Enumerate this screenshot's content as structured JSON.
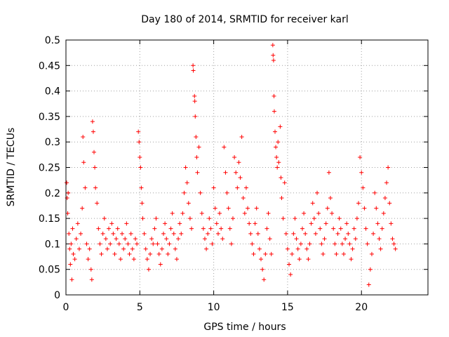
{
  "chart_data": {
    "type": "scatter",
    "title": "Day 180 of 2014, SRMTID for receiver karl",
    "xlabel": "GPS time / hours",
    "ylabel": "SRMTID / TECUs",
    "xlim": [
      0,
      24.5
    ],
    "ylim": [
      0,
      0.5
    ],
    "x_ticks": [
      0,
      5,
      10,
      15,
      20
    ],
    "x_tick_labels": [
      "0",
      "5",
      "10",
      "15",
      "20"
    ],
    "y_ticks": [
      0,
      0.05,
      0.1,
      0.15,
      0.2,
      0.25,
      0.3,
      0.35,
      0.4,
      0.45,
      0.5
    ],
    "y_tick_labels": [
      "0",
      "0.05",
      "0.1",
      "0.15",
      "0.2",
      "0.25",
      "0.3",
      "0.35",
      "0.4",
      "0.45",
      "0.5"
    ],
    "grid": true,
    "marker": "plus",
    "color": "#ff0000",
    "series": [
      {
        "name": "SRMTID",
        "points": [
          [
            0.05,
            0.22
          ],
          [
            0.08,
            0.19
          ],
          [
            0.12,
            0.16
          ],
          [
            0.15,
            0.2
          ],
          [
            0.2,
            0.12
          ],
          [
            0.25,
            0.09
          ],
          [
            0.3,
            0.06
          ],
          [
            0.35,
            0.1
          ],
          [
            0.4,
            0.03
          ],
          [
            0.45,
            0.13
          ],
          [
            0.5,
            0.08
          ],
          [
            0.6,
            0.07
          ],
          [
            0.7,
            0.11
          ],
          [
            0.8,
            0.14
          ],
          [
            0.9,
            0.09
          ],
          [
            1.0,
            0.12
          ],
          [
            1.1,
            0.17
          ],
          [
            1.15,
            0.31
          ],
          [
            1.2,
            0.26
          ],
          [
            1.3,
            0.21
          ],
          [
            1.4,
            0.1
          ],
          [
            1.5,
            0.07
          ],
          [
            1.6,
            0.09
          ],
          [
            1.7,
            0.05
          ],
          [
            1.75,
            0.03
          ],
          [
            1.8,
            0.34
          ],
          [
            1.85,
            0.32
          ],
          [
            1.9,
            0.28
          ],
          [
            1.95,
            0.25
          ],
          [
            2.0,
            0.21
          ],
          [
            2.1,
            0.18
          ],
          [
            2.2,
            0.13
          ],
          [
            2.3,
            0.1
          ],
          [
            2.4,
            0.08
          ],
          [
            2.5,
            0.12
          ],
          [
            2.6,
            0.15
          ],
          [
            2.7,
            0.11
          ],
          [
            2.8,
            0.09
          ],
          [
            2.9,
            0.13
          ],
          [
            3.0,
            0.1
          ],
          [
            3.1,
            0.14
          ],
          [
            3.2,
            0.12
          ],
          [
            3.3,
            0.08
          ],
          [
            3.4,
            0.11
          ],
          [
            3.5,
            0.13
          ],
          [
            3.6,
            0.1
          ],
          [
            3.7,
            0.07
          ],
          [
            3.8,
            0.12
          ],
          [
            3.9,
            0.09
          ],
          [
            4.0,
            0.11
          ],
          [
            4.1,
            0.14
          ],
          [
            4.2,
            0.1
          ],
          [
            4.3,
            0.08
          ],
          [
            4.4,
            0.12
          ],
          [
            4.5,
            0.09
          ],
          [
            4.6,
            0.07
          ],
          [
            4.7,
            0.11
          ],
          [
            4.8,
            0.1
          ],
          [
            4.9,
            0.32
          ],
          [
            4.95,
            0.3
          ],
          [
            5.0,
            0.27
          ],
          [
            5.05,
            0.25
          ],
          [
            5.1,
            0.21
          ],
          [
            5.15,
            0.18
          ],
          [
            5.2,
            0.15
          ],
          [
            5.3,
            0.12
          ],
          [
            5.4,
            0.09
          ],
          [
            5.5,
            0.07
          ],
          [
            5.6,
            0.05
          ],
          [
            5.7,
            0.08
          ],
          [
            5.8,
            0.11
          ],
          [
            5.9,
            0.1
          ],
          [
            6.0,
            0.13
          ],
          [
            6.1,
            0.15
          ],
          [
            6.2,
            0.1
          ],
          [
            6.3,
            0.08
          ],
          [
            6.4,
            0.06
          ],
          [
            6.5,
            0.09
          ],
          [
            6.6,
            0.12
          ],
          [
            6.7,
            0.14
          ],
          [
            6.8,
            0.11
          ],
          [
            6.9,
            0.08
          ],
          [
            7.0,
            0.1
          ],
          [
            7.1,
            0.13
          ],
          [
            7.2,
            0.16
          ],
          [
            7.3,
            0.12
          ],
          [
            7.4,
            0.09
          ],
          [
            7.5,
            0.07
          ],
          [
            7.6,
            0.11
          ],
          [
            7.7,
            0.14
          ],
          [
            7.8,
            0.12
          ],
          [
            7.9,
            0.16
          ],
          [
            8.0,
            0.2
          ],
          [
            8.1,
            0.25
          ],
          [
            8.2,
            0.22
          ],
          [
            8.3,
            0.18
          ],
          [
            8.4,
            0.15
          ],
          [
            8.5,
            0.13
          ],
          [
            8.6,
            0.45
          ],
          [
            8.62,
            0.44
          ],
          [
            8.7,
            0.39
          ],
          [
            8.72,
            0.38
          ],
          [
            8.75,
            0.35
          ],
          [
            8.8,
            0.31
          ],
          [
            8.85,
            0.27
          ],
          [
            8.9,
            0.24
          ],
          [
            9.0,
            0.29
          ],
          [
            9.1,
            0.2
          ],
          [
            9.2,
            0.16
          ],
          [
            9.3,
            0.13
          ],
          [
            9.4,
            0.11
          ],
          [
            9.5,
            0.09
          ],
          [
            9.6,
            0.12
          ],
          [
            9.7,
            0.15
          ],
          [
            9.8,
            0.13
          ],
          [
            9.9,
            0.1
          ],
          [
            10.0,
            0.21
          ],
          [
            10.1,
            0.17
          ],
          [
            10.2,
            0.14
          ],
          [
            10.3,
            0.12
          ],
          [
            10.4,
            0.16
          ],
          [
            10.5,
            0.13
          ],
          [
            10.6,
            0.11
          ],
          [
            10.7,
            0.29
          ],
          [
            10.8,
            0.24
          ],
          [
            10.9,
            0.2
          ],
          [
            11.0,
            0.17
          ],
          [
            11.1,
            0.13
          ],
          [
            11.2,
            0.1
          ],
          [
            11.3,
            0.15
          ],
          [
            11.4,
            0.27
          ],
          [
            11.5,
            0.24
          ],
          [
            11.6,
            0.21
          ],
          [
            11.7,
            0.26
          ],
          [
            11.8,
            0.23
          ],
          [
            11.9,
            0.31
          ],
          [
            12.0,
            0.19
          ],
          [
            12.1,
            0.16
          ],
          [
            12.2,
            0.21
          ],
          [
            12.3,
            0.17
          ],
          [
            12.4,
            0.14
          ],
          [
            12.5,
            0.12
          ],
          [
            12.6,
            0.1
          ],
          [
            12.7,
            0.08
          ],
          [
            12.8,
            0.14
          ],
          [
            12.9,
            0.17
          ],
          [
            13.0,
            0.12
          ],
          [
            13.1,
            0.09
          ],
          [
            13.2,
            0.07
          ],
          [
            13.3,
            0.05
          ],
          [
            13.4,
            0.03
          ],
          [
            13.5,
            0.08
          ],
          [
            13.6,
            0.13
          ],
          [
            13.7,
            0.16
          ],
          [
            13.8,
            0.11
          ],
          [
            13.9,
            0.08
          ],
          [
            14.0,
            0.49
          ],
          [
            14.02,
            0.47
          ],
          [
            14.05,
            0.46
          ],
          [
            14.08,
            0.39
          ],
          [
            14.1,
            0.36
          ],
          [
            14.15,
            0.32
          ],
          [
            14.2,
            0.29
          ],
          [
            14.25,
            0.27
          ],
          [
            14.3,
            0.25
          ],
          [
            14.35,
            0.3
          ],
          [
            14.4,
            0.26
          ],
          [
            14.5,
            0.33
          ],
          [
            14.55,
            0.23
          ],
          [
            14.6,
            0.19
          ],
          [
            14.7,
            0.15
          ],
          [
            14.8,
            0.22
          ],
          [
            14.9,
            0.12
          ],
          [
            15.0,
            0.09
          ],
          [
            15.1,
            0.06
          ],
          [
            15.2,
            0.04
          ],
          [
            15.3,
            0.08
          ],
          [
            15.4,
            0.12
          ],
          [
            15.5,
            0.15
          ],
          [
            15.6,
            0.11
          ],
          [
            15.7,
            0.09
          ],
          [
            15.8,
            0.07
          ],
          [
            15.9,
            0.1
          ],
          [
            16.0,
            0.13
          ],
          [
            16.1,
            0.16
          ],
          [
            16.2,
            0.12
          ],
          [
            16.3,
            0.09
          ],
          [
            16.4,
            0.07
          ],
          [
            16.5,
            0.1
          ],
          [
            16.6,
            0.14
          ],
          [
            16.7,
            0.18
          ],
          [
            16.8,
            0.15
          ],
          [
            16.9,
            0.12
          ],
          [
            17.0,
            0.2
          ],
          [
            17.1,
            0.16
          ],
          [
            17.2,
            0.13
          ],
          [
            17.3,
            0.1
          ],
          [
            17.4,
            0.08
          ],
          [
            17.5,
            0.11
          ],
          [
            17.6,
            0.14
          ],
          [
            17.7,
            0.17
          ],
          [
            17.8,
            0.24
          ],
          [
            17.9,
            0.19
          ],
          [
            18.0,
            0.16
          ],
          [
            18.1,
            0.13
          ],
          [
            18.2,
            0.1
          ],
          [
            18.3,
            0.08
          ],
          [
            18.4,
            0.12
          ],
          [
            18.5,
            0.15
          ],
          [
            18.6,
            0.13
          ],
          [
            18.7,
            0.1
          ],
          [
            18.8,
            0.08
          ],
          [
            18.9,
            0.11
          ],
          [
            19.0,
            0.14
          ],
          [
            19.1,
            0.12
          ],
          [
            19.2,
            0.1
          ],
          [
            19.3,
            0.07
          ],
          [
            19.4,
            0.09
          ],
          [
            19.5,
            0.13
          ],
          [
            19.6,
            0.11
          ],
          [
            19.7,
            0.15
          ],
          [
            19.8,
            0.18
          ],
          [
            19.9,
            0.27
          ],
          [
            20.0,
            0.24
          ],
          [
            20.1,
            0.21
          ],
          [
            20.2,
            0.17
          ],
          [
            20.3,
            0.13
          ],
          [
            20.4,
            0.1
          ],
          [
            20.5,
            0.02
          ],
          [
            20.6,
            0.05
          ],
          [
            20.7,
            0.08
          ],
          [
            20.8,
            0.12
          ],
          [
            20.9,
            0.2
          ],
          [
            21.0,
            0.17
          ],
          [
            21.1,
            0.14
          ],
          [
            21.2,
            0.11
          ],
          [
            21.3,
            0.09
          ],
          [
            21.4,
            0.13
          ],
          [
            21.5,
            0.16
          ],
          [
            21.6,
            0.19
          ],
          [
            21.7,
            0.22
          ],
          [
            21.8,
            0.25
          ],
          [
            21.9,
            0.18
          ],
          [
            22.0,
            0.14
          ],
          [
            22.1,
            0.11
          ],
          [
            22.2,
            0.1
          ],
          [
            22.3,
            0.09
          ]
        ]
      }
    ]
  }
}
